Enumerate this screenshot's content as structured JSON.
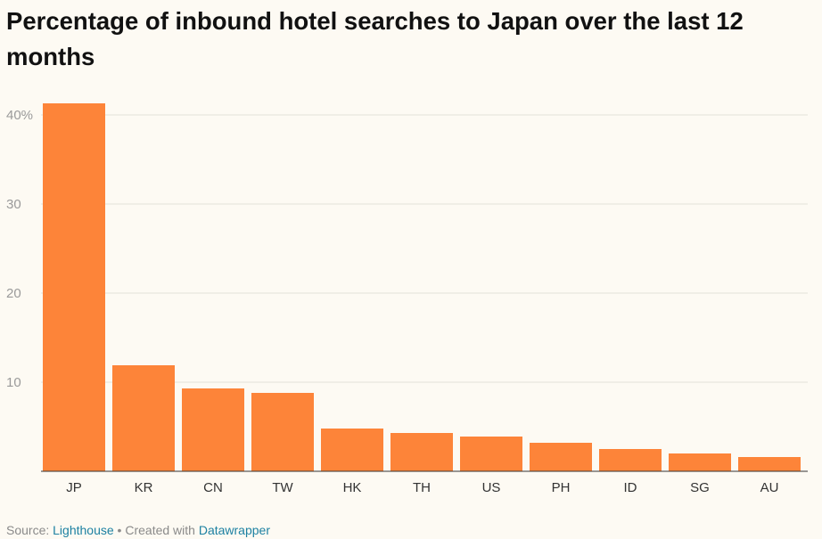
{
  "title": "Percentage of inbound hotel searches to Japan over the last 12 months",
  "chart_data": {
    "type": "bar",
    "categories": [
      "JP",
      "KR",
      "CN",
      "TW",
      "HK",
      "TH",
      "US",
      "PH",
      "ID",
      "SG",
      "AU"
    ],
    "values": [
      41.3,
      11.9,
      9.3,
      8.8,
      4.8,
      4.3,
      3.9,
      3.2,
      2.5,
      2.0,
      1.6
    ],
    "ylim": [
      0,
      40
    ],
    "yticks": [
      {
        "value": 10,
        "label": "10"
      },
      {
        "value": 20,
        "label": "20"
      },
      {
        "value": 30,
        "label": "30"
      },
      {
        "value": 40,
        "label": "40%"
      }
    ],
    "grid": true,
    "bar_color": "#fd8439"
  },
  "footer": {
    "source_prefix": "Source: ",
    "source_link": "Lighthouse",
    "separator": " • ",
    "created_prefix": "Created with ",
    "created_link": "Datawrapper"
  }
}
